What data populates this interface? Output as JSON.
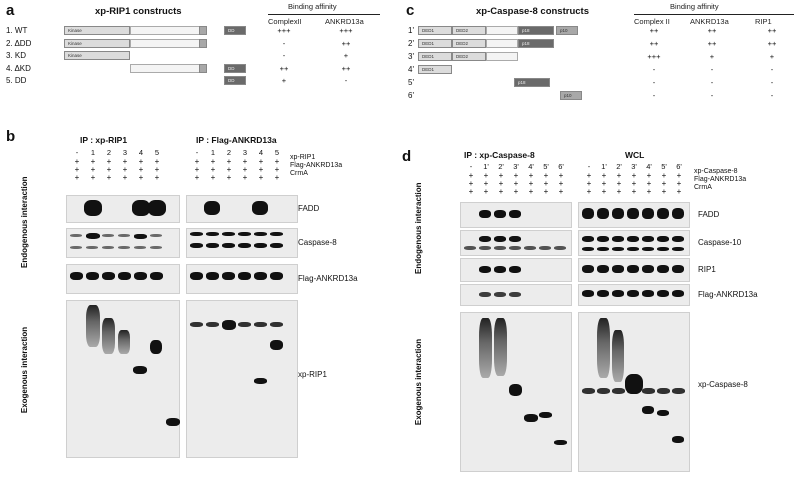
{
  "panel_a": {
    "letter": "a",
    "title": "xp-RIP1 constructs",
    "affinity_header": "Binding affinity",
    "col_headers": [
      "ComplexII",
      "ANKRD13a"
    ],
    "rows": [
      {
        "label": "1. WT",
        "kinase": "Kinase",
        "dd": "DD",
        "aff": [
          "+++",
          "+++"
        ]
      },
      {
        "label": "2. ΔDD",
        "kinase": "Kinase",
        "dd": "",
        "aff": [
          "-",
          "++"
        ]
      },
      {
        "label": "3. KD",
        "kinase": "Kinase",
        "dd": "",
        "aff": [
          "-",
          "+"
        ]
      },
      {
        "label": "4. ΔKD",
        "kinase": "",
        "dd": "DD",
        "aff": [
          "++",
          "++"
        ]
      },
      {
        "label": "5. DD",
        "kinase": "",
        "dd": "DD",
        "aff": [
          "+",
          "-"
        ]
      }
    ]
  },
  "panel_c": {
    "letter": "c",
    "title": "xp-Caspase-8 constructs",
    "affinity_header": "Binding affinity",
    "col_headers": [
      "Complex II",
      "ANKRD13a",
      "RIP1"
    ],
    "rows": [
      {
        "label": "1'",
        "d1": "DED1",
        "d2": "DED2",
        "p18": "p18",
        "p10": "p10",
        "aff": [
          "++",
          "++",
          "++"
        ]
      },
      {
        "label": "2'",
        "d1": "DED1",
        "d2": "DED2",
        "p18": "p18",
        "p10": "",
        "aff": [
          "++",
          "++",
          "++"
        ]
      },
      {
        "label": "3'",
        "d1": "DED1",
        "d2": "DED2",
        "p18": "",
        "p10": "",
        "aff": [
          "+++",
          "+",
          "+"
        ]
      },
      {
        "label": "4'",
        "d1": "DED1",
        "d2": "",
        "p18": "",
        "p10": "",
        "aff": [
          "-",
          "-",
          "-"
        ]
      },
      {
        "label": "5'",
        "d1": "",
        "d2": "",
        "p18": "p18",
        "p10": "",
        "aff": [
          "-",
          "-",
          "-"
        ]
      },
      {
        "label": "6'",
        "d1": "",
        "d2": "",
        "p18": "",
        "p10": "p10",
        "aff": [
          "-",
          "-",
          "-"
        ]
      }
    ]
  },
  "panel_b": {
    "letter": "b",
    "ip_left": "IP : xp-RIP1",
    "ip_right": "IP : Flag-ANKRD13a",
    "lanes": [
      "-",
      "1",
      "2",
      "3",
      "4",
      "5"
    ],
    "treatments": [
      "xp-RIP1",
      "Flag-ANKRD13a",
      "CrmA"
    ],
    "blots": [
      "FADD",
      "Caspase-8",
      "Flag-ANKRD13a",
      "xp-RIP1"
    ],
    "side_labels": [
      "Endogenous interaction",
      "Exogenous interaction"
    ]
  },
  "panel_d": {
    "letter": "d",
    "ip_left": "IP : xp-Caspase-8",
    "ip_right": "WCL",
    "lanes": [
      "-",
      "1'",
      "2'",
      "3'",
      "4'",
      "5'",
      "6'"
    ],
    "treatments": [
      "xp-Caspase-8",
      "Flag-ANKRD13a",
      "CrmA"
    ],
    "blots": [
      "FADD",
      "Caspase-10",
      "RIP1",
      "Flag-ANKRD13a",
      "xp-Caspase-8"
    ],
    "side_labels": [
      "Endogenous interaction",
      "Exogenous interaction"
    ]
  }
}
